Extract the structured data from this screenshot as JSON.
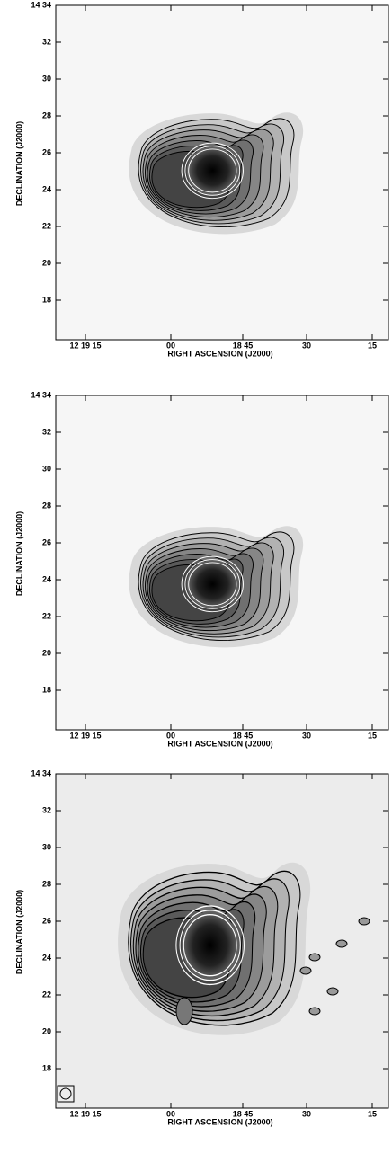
{
  "panels": [
    {
      "y_axis_label": "DECLINATION (J2000)",
      "x_axis_label": "RIGHT ASCENSION (J2000)",
      "y_tick_labels": [
        "14 34",
        "32",
        "30",
        "28",
        "26",
        "24",
        "22",
        "20",
        "18"
      ],
      "x_tick_labels": [
        "12 19 15",
        "00",
        "18 45",
        "30",
        "15"
      ]
    },
    {
      "y_axis_label": "DECLINATION (J2000)",
      "x_axis_label": "RIGHT ASCENSION (J2000)",
      "y_tick_labels": [
        "14 34",
        "32",
        "30",
        "28",
        "26",
        "24",
        "22",
        "20",
        "18"
      ],
      "x_tick_labels": [
        "12 19 15",
        "00",
        "18 45",
        "30",
        "15"
      ]
    },
    {
      "y_axis_label": "DECLINATION (J2000)",
      "x_axis_label": "RIGHT ASCENSION (J2000)",
      "y_tick_labels": [
        "14 34",
        "32",
        "30",
        "28",
        "26",
        "24",
        "22",
        "20",
        "18"
      ],
      "x_tick_labels": [
        "12 19 15",
        "00",
        "18 45",
        "30",
        "15"
      ]
    }
  ]
}
